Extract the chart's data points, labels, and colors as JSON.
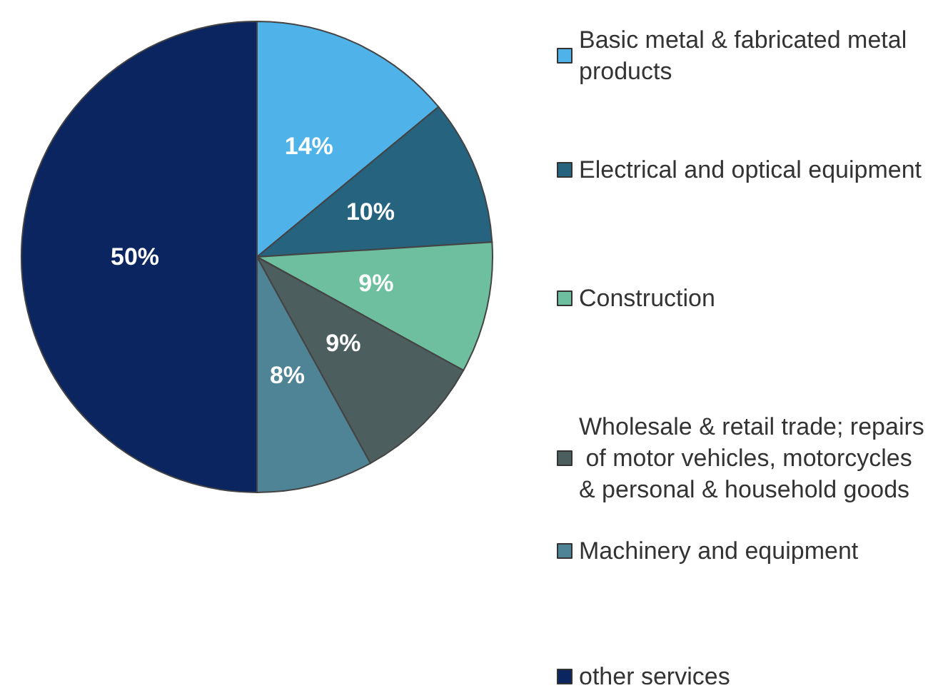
{
  "chart_data": {
    "type": "pie",
    "categories": [
      "Basic metal & fabricated metal products",
      "Electrical and optical equipment",
      "Construction",
      "Wholesale & retail trade; repairs of motor vehicles, motorcycles & personal & household goods",
      "Machinery and equipment",
      "other services"
    ],
    "values": [
      14,
      10,
      9,
      9,
      8,
      50
    ],
    "value_labels": [
      "14%",
      "10%",
      "9%",
      "9%",
      "8%",
      "50%"
    ],
    "colors": [
      "#4fb3ea",
      "#26637f",
      "#6dbfa0",
      "#4d5e5f",
      "#4f8496",
      "#0b2560"
    ],
    "legend": "right"
  }
}
